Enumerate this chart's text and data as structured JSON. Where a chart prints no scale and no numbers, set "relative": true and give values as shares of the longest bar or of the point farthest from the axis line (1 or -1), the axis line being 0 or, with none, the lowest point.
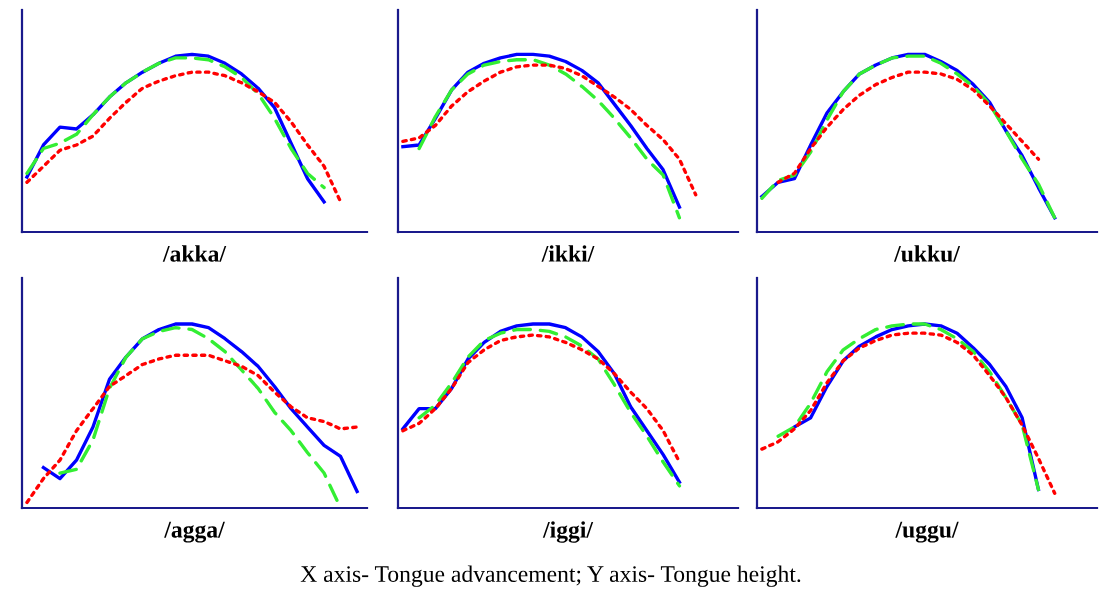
{
  "chart_data": [
    {
      "type": "line",
      "relative": true,
      "xlabel": "/akka/",
      "categories": [
        null,
        null,
        null,
        null,
        null,
        null,
        null,
        null,
        null,
        null,
        null,
        null,
        null,
        null,
        null,
        null,
        null,
        null,
        null,
        null,
        null
      ],
      "series": [
        {
          "color": "#0000ff",
          "line_style": "solid",
          "values": [
            0.31,
            0.49,
            0.59,
            0.58,
            0.66,
            0.76,
            0.84,
            0.9,
            0.95,
            0.99,
            1.0,
            0.99,
            0.95,
            0.89,
            0.81,
            0.7,
            0.5,
            0.3,
            0.17,
            null,
            null
          ]
        },
        {
          "color": "#33ee33",
          "line_style": "dashed",
          "values": [
            0.33,
            0.47,
            0.5,
            0.55,
            0.66,
            0.76,
            0.84,
            0.9,
            0.95,
            0.98,
            0.98,
            0.97,
            0.93,
            0.87,
            0.78,
            0.64,
            0.47,
            0.33,
            0.25,
            null,
            null
          ]
        },
        {
          "color": "#ff0000",
          "line_style": "dotted",
          "values": [
            0.28,
            0.37,
            0.46,
            0.49,
            0.54,
            0.64,
            0.73,
            0.81,
            0.85,
            0.88,
            0.9,
            0.9,
            0.88,
            0.84,
            0.79,
            0.73,
            0.62,
            0.49,
            0.37,
            0.17,
            null
          ]
        }
      ]
    },
    {
      "type": "line",
      "relative": true,
      "xlabel": "/ikki/",
      "categories": [
        null,
        null,
        null,
        null,
        null,
        null,
        null,
        null,
        null,
        null,
        null,
        null,
        null,
        null,
        null,
        null,
        null,
        null,
        null,
        null,
        null
      ],
      "series": [
        {
          "color": "#0000ff",
          "line_style": "solid",
          "values": [
            0.48,
            0.49,
            0.64,
            0.8,
            0.9,
            0.95,
            0.98,
            1.0,
            1.0,
            0.99,
            0.96,
            0.91,
            0.84,
            0.72,
            0.6,
            0.47,
            0.35,
            0.14,
            null,
            null,
            null
          ]
        },
        {
          "color": "#33ee33",
          "line_style": "dashed",
          "values": [
            null,
            0.47,
            0.65,
            0.8,
            0.89,
            0.94,
            0.96,
            0.97,
            0.97,
            0.94,
            0.89,
            0.82,
            0.74,
            0.64,
            0.53,
            0.41,
            0.32,
            0.08,
            null,
            null,
            null
          ]
        },
        {
          "color": "#ff0000",
          "line_style": "dotted",
          "values": [
            0.51,
            0.53,
            0.6,
            0.71,
            0.79,
            0.85,
            0.9,
            0.93,
            0.94,
            0.94,
            0.92,
            0.88,
            0.82,
            0.76,
            0.69,
            0.6,
            0.52,
            0.41,
            0.21,
            null,
            null
          ]
        }
      ]
    },
    {
      "type": "line",
      "relative": true,
      "xlabel": "/ukku/",
      "categories": [
        null,
        null,
        null,
        null,
        null,
        null,
        null,
        null,
        null,
        null,
        null,
        null,
        null,
        null,
        null,
        null,
        null,
        null,
        null,
        null,
        null
      ],
      "series": [
        {
          "color": "#0000ff",
          "line_style": "solid",
          "values": [
            0.2,
            0.28,
            0.3,
            0.49,
            0.67,
            0.79,
            0.89,
            0.94,
            0.98,
            1.0,
            1.0,
            0.96,
            0.91,
            0.83,
            0.73,
            0.57,
            0.43,
            0.25,
            0.08,
            null,
            null
          ]
        },
        {
          "color": "#33ee33",
          "line_style": "dashed",
          "values": [
            0.19,
            0.29,
            0.32,
            0.45,
            0.63,
            0.79,
            0.89,
            0.94,
            0.98,
            0.99,
            0.99,
            0.95,
            0.89,
            0.82,
            0.72,
            0.57,
            0.41,
            0.27,
            0.08,
            null,
            null
          ]
        },
        {
          "color": "#ff0000",
          "line_style": "dotted",
          "values": [
            null,
            0.28,
            0.33,
            0.47,
            0.59,
            0.69,
            0.77,
            0.83,
            0.87,
            0.9,
            0.9,
            0.89,
            0.86,
            0.8,
            0.71,
            0.61,
            0.51,
            0.41,
            null,
            null,
            null
          ]
        }
      ]
    },
    {
      "type": "line",
      "relative": true,
      "xlabel": "/agga/",
      "categories": [
        null,
        null,
        null,
        null,
        null,
        null,
        null,
        null,
        null,
        null,
        null,
        null,
        null,
        null,
        null,
        null,
        null,
        null,
        null,
        null,
        null
      ],
      "series": [
        {
          "color": "#0000ff",
          "line_style": "solid",
          "values": [
            null,
            0.22,
            0.16,
            0.26,
            0.44,
            0.7,
            0.82,
            0.92,
            0.97,
            1.0,
            1.0,
            0.98,
            0.92,
            0.85,
            0.77,
            0.66,
            0.54,
            0.44,
            0.34,
            0.28,
            0.09
          ]
        },
        {
          "color": "#33ee33",
          "line_style": "dashed",
          "values": [
            null,
            null,
            0.19,
            0.21,
            0.37,
            0.65,
            0.82,
            0.92,
            0.96,
            0.98,
            0.97,
            0.92,
            0.85,
            0.75,
            0.65,
            0.52,
            0.42,
            0.3,
            0.19,
            0.0,
            null
          ]
        },
        {
          "color": "#ff0000",
          "line_style": "dotted",
          "values": [
            0.03,
            0.16,
            0.26,
            0.42,
            0.54,
            0.66,
            0.72,
            0.78,
            0.81,
            0.83,
            0.83,
            0.83,
            0.8,
            0.77,
            0.72,
            0.63,
            0.55,
            0.49,
            0.47,
            0.43,
            0.44
          ]
        }
      ]
    },
    {
      "type": "line",
      "relative": true,
      "xlabel": "/iggi/",
      "categories": [
        null,
        null,
        null,
        null,
        null,
        null,
        null,
        null,
        null,
        null,
        null,
        null,
        null,
        null,
        null,
        null,
        null,
        null,
        null,
        null,
        null
      ],
      "series": [
        {
          "color": "#0000ff",
          "line_style": "solid",
          "values": [
            0.43,
            0.54,
            0.54,
            0.65,
            0.81,
            0.9,
            0.96,
            0.99,
            1.0,
            1.0,
            0.98,
            0.93,
            0.85,
            0.73,
            0.55,
            0.42,
            0.29,
            0.14,
            null,
            null,
            null
          ]
        },
        {
          "color": "#33ee33",
          "line_style": "dashed",
          "values": [
            null,
            0.49,
            0.56,
            0.68,
            0.82,
            0.91,
            0.95,
            0.97,
            0.97,
            0.96,
            0.93,
            0.88,
            0.81,
            0.67,
            0.52,
            0.39,
            0.25,
            0.12,
            null,
            null,
            null
          ]
        },
        {
          "color": "#ff0000",
          "line_style": "dotted",
          "values": [
            0.42,
            0.46,
            0.54,
            0.65,
            0.79,
            0.86,
            0.91,
            0.93,
            0.94,
            0.93,
            0.9,
            0.86,
            0.81,
            0.73,
            0.63,
            0.54,
            0.42,
            0.25,
            null,
            null,
            null
          ]
        }
      ]
    },
    {
      "type": "line",
      "relative": true,
      "xlabel": "/uggu/",
      "categories": [
        null,
        null,
        null,
        null,
        null,
        null,
        null,
        null,
        null,
        null,
        null,
        null,
        null,
        null,
        null,
        null,
        null,
        null,
        null,
        null,
        null
      ],
      "annotations": [
        "X axis- Tongue advancement; Y axis- Tongue height."
      ],
      "series": [
        {
          "color": "#0000ff",
          "line_style": "solid",
          "values": [
            null,
            null,
            0.44,
            0.49,
            0.66,
            0.8,
            0.88,
            0.93,
            0.97,
            0.99,
            1.0,
            0.99,
            0.95,
            0.87,
            0.78,
            0.66,
            0.49,
            0.1,
            null,
            null,
            null
          ]
        },
        {
          "color": "#33ee33",
          "line_style": "dashed",
          "values": [
            null,
            0.39,
            0.44,
            0.57,
            0.74,
            0.86,
            0.92,
            0.97,
            0.99,
            1.0,
            1.0,
            0.97,
            0.92,
            0.85,
            0.74,
            0.6,
            0.45,
            0.1,
            null,
            null,
            null
          ]
        },
        {
          "color": "#ff0000",
          "line_style": "dotted",
          "values": [
            0.32,
            0.36,
            0.43,
            0.53,
            0.68,
            0.8,
            0.87,
            0.91,
            0.94,
            0.95,
            0.95,
            0.94,
            0.9,
            0.83,
            0.72,
            0.6,
            0.45,
            0.27,
            0.08,
            null,
            null
          ]
        }
      ]
    }
  ]
}
